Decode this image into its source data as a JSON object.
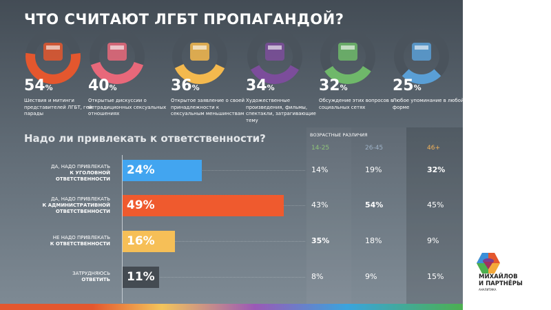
{
  "title": "ЧТО СЧИТАЮТ ЛГБТ ПРОПАГАНДОЙ?",
  "items": [
    {
      "value": "54",
      "unit": "%",
      "text": "Шествия и митинги представителей ЛГБТ, гей-парады",
      "color": "#e4572e",
      "icon": "rainbow-flag-icon"
    },
    {
      "value": "40",
      "unit": "%",
      "text": "Открытые дискуссии о нетрадиционных сексуальных отношениях",
      "color": "#e8687a",
      "icon": "microphone-icon"
    },
    {
      "value": "36",
      "unit": "%",
      "text": "Открытое заявление о своей принадлежности к сексуальным меньшинствам",
      "color": "#f4b94e",
      "icon": "rainbow-scarf-icon"
    },
    {
      "value": "34",
      "unit": "%",
      "text": "Художественные произведения, фильмы, спектакли, затрагивающие тему",
      "color": "#7c4d9b",
      "icon": "theater-stage-icon"
    },
    {
      "value": "32",
      "unit": "%",
      "text": "Обсуждение этих вопросов в социальных сетях",
      "color": "#6fb86a",
      "icon": "social-media-icon"
    },
    {
      "value": "25",
      "unit": "%",
      "text": "Любое упоминание в любой форме",
      "color": "#5a9fd6",
      "icon": "popsicle-icon"
    }
  ],
  "question": "Надо ли привлекать к ответственности?",
  "age": {
    "heading": "ВОЗРАСТНЫЕ РАЗЛИЧИЯ",
    "groups": [
      {
        "label": "14-25",
        "color": "#8fc47a"
      },
      {
        "label": "26-45",
        "color": "#9fb3c8"
      },
      {
        "label": "46+",
        "color": "#f2b35a"
      }
    ]
  },
  "answers": [
    {
      "label1": "ДА, НАДО ПРИВЛЕКАТЬ",
      "label2": "К УГОЛОВНОЙ ОТВЕТСТВЕННОСТИ",
      "label3": "",
      "value": 24,
      "text": "24%",
      "color": "#42a5f0",
      "ages": [
        "14%",
        "19%",
        "32%"
      ],
      "bold": 2
    },
    {
      "label1": "ДА, НАДО ПРИВЛЕКАТЬ",
      "label2": "К АДМИНИСТРАТИВНОЙ",
      "label3": "ОТВЕТСТВЕННОСТИ",
      "value": 49,
      "text": "49%",
      "color": "#ef5a2e",
      "ages": [
        "43%",
        "54%",
        "45%"
      ],
      "bold": 1
    },
    {
      "label1": "НЕ НАДО ПРИВЛЕКАТЬ",
      "label2": "К ОТВЕТСТВЕННОСТИ",
      "label3": "",
      "value": 16,
      "text": "16%",
      "color": "#f6bf57",
      "ages": [
        "35%",
        "18%",
        "9%"
      ],
      "bold": 0
    },
    {
      "label1": "ЗАТРУДНЯЮСЬ",
      "label2": "ОТВЕТИТЬ",
      "label3": "",
      "value": 11,
      "text": "11%",
      "color": "#444b52",
      "ages": [
        "8%",
        "9%",
        "15%"
      ],
      "bold": -1
    }
  ],
  "brand": {
    "line1": "МИХАЙЛОВ",
    "line2": "И ПАРТНЁРЫ",
    "line3": "АНАЛИТИКА"
  }
}
